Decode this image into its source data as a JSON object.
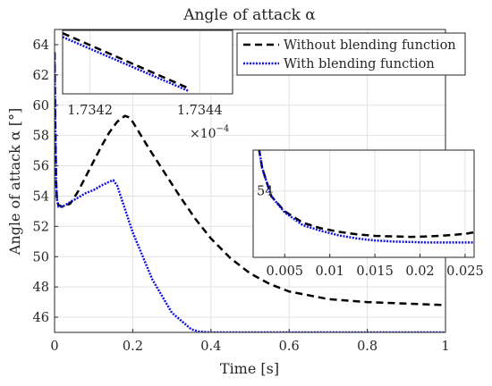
{
  "chart_data": [
    {
      "type": "line",
      "title": "Angle of attack α",
      "xlabel": "Time [s]",
      "ylabel": "Angle of attack α [°]",
      "xlim": [
        0,
        1
      ],
      "ylim": [
        45,
        65
      ],
      "xticks": [
        0,
        0.2,
        0.4,
        0.6,
        0.8,
        1
      ],
      "xtick_labels": [
        "0",
        "0.2",
        "0.4",
        "0.6",
        "0.8",
        "1"
      ],
      "yticks": [
        46,
        48,
        50,
        52,
        54,
        56,
        58,
        60,
        62,
        64
      ],
      "ytick_labels": [
        "46",
        "48",
        "50",
        "52",
        "54",
        "56",
        "58",
        "60",
        "62",
        "64"
      ],
      "grid": true,
      "legend_position": "top-right",
      "series": [
        {
          "name": "Without blending function",
          "color": "#000000",
          "style": "dashed",
          "x": [
            0,
            0.002,
            0.004,
            0.006,
            0.01,
            0.02,
            0.04,
            0.06,
            0.08,
            0.1,
            0.12,
            0.14,
            0.16,
            0.18,
            0.19,
            0.2,
            0.24,
            0.28,
            0.32,
            0.36,
            0.4,
            0.45,
            0.5,
            0.55,
            0.6,
            0.7,
            0.8,
            0.9,
            0.95,
            1.0
          ],
          "y": [
            63.5,
            58.5,
            55,
            53.8,
            53.4,
            53.3,
            53.5,
            54.3,
            55.3,
            56.3,
            57.3,
            58.2,
            58.9,
            59.3,
            59.2,
            58.9,
            57.2,
            55.6,
            54,
            52.5,
            51.2,
            49.9,
            48.9,
            48.2,
            47.7,
            47.2,
            47,
            46.9,
            46.85,
            46.8
          ]
        },
        {
          "name": "With blending function",
          "color": "#1010e0",
          "style": "dotted",
          "x": [
            0,
            0.002,
            0.004,
            0.006,
            0.01,
            0.02,
            0.04,
            0.06,
            0.08,
            0.1,
            0.12,
            0.14,
            0.15,
            0.16,
            0.2,
            0.25,
            0.3,
            0.35,
            0.37,
            0.4,
            0.5,
            0.6,
            0.7,
            0.8,
            0.9,
            1.0
          ],
          "y": [
            63.5,
            58.5,
            55,
            53.8,
            53.3,
            53.3,
            53.6,
            53.9,
            54.2,
            54.4,
            54.7,
            54.95,
            55.05,
            54.7,
            51.6,
            48.5,
            46.3,
            45.2,
            45.05,
            45,
            45,
            45,
            45,
            45,
            45,
            45
          ]
        }
      ]
    },
    {
      "type": "line",
      "inset": "top-left zoom",
      "xtick_labels": [
        "1.7342",
        "1.7344"
      ],
      "xticks": [
        1.7342,
        1.7344
      ],
      "xlim": [
        1.73415,
        1.73446
      ],
      "x_exponent": "×10",
      "x_exponent_power": "−4",
      "grid": true,
      "series": [
        {
          "name": "Without blending function",
          "color": "#000000",
          "style": "dashed",
          "x": [
            1.73415,
            1.73438
          ],
          "y": [
            1.0,
            0.0
          ]
        },
        {
          "name": "With blending function",
          "color": "#1010e0",
          "style": "dotted",
          "x": [
            1.73415,
            1.73438
          ],
          "y": [
            0.93,
            -0.05
          ]
        }
      ]
    },
    {
      "type": "line",
      "inset": "right zoom",
      "xlim": [
        0.0015,
        0.026
      ],
      "ylim": [
        52.7,
        54.8
      ],
      "xticks": [
        0.005,
        0.01,
        0.015,
        0.02,
        0.025
      ],
      "xtick_labels": [
        "0.005",
        "0.01",
        "0.015",
        "0.02",
        "0.025"
      ],
      "yticks": [
        54
      ],
      "ytick_labels": [
        "54"
      ],
      "grid": true,
      "series": [
        {
          "name": "Without blending function",
          "color": "#000000",
          "style": "dashed",
          "x": [
            0.0015,
            0.0025,
            0.0035,
            0.005,
            0.007,
            0.009,
            0.011,
            0.013,
            0.015,
            0.017,
            0.019,
            0.021,
            0.023,
            0.025,
            0.026
          ],
          "y": [
            55.5,
            54.45,
            53.9,
            53.6,
            53.38,
            53.27,
            53.2,
            53.15,
            53.12,
            53.11,
            53.1,
            53.11,
            53.13,
            53.16,
            53.19
          ]
        },
        {
          "name": "With blending function",
          "color": "#1010e0",
          "style": "dotted",
          "x": [
            0.0015,
            0.0025,
            0.0035,
            0.005,
            0.007,
            0.009,
            0.011,
            0.013,
            0.015,
            0.017,
            0.019,
            0.021,
            0.023,
            0.025,
            0.026
          ],
          "y": [
            55.5,
            54.45,
            53.9,
            53.58,
            53.33,
            53.22,
            53.13,
            53.07,
            53.03,
            53.01,
            53.0,
            52.99,
            52.99,
            52.99,
            52.99
          ]
        }
      ]
    }
  ]
}
